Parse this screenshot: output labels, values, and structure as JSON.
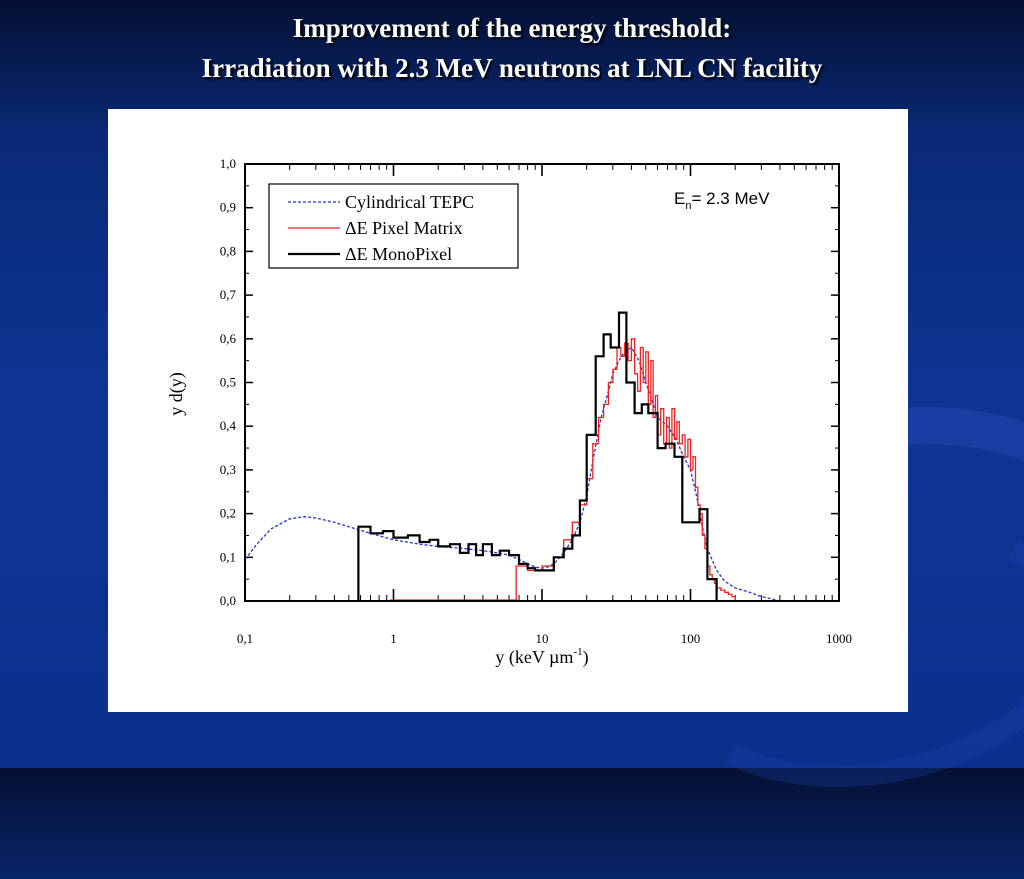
{
  "slide": {
    "title_line1": "Improvement of the energy threshold:",
    "title_line2": "Irradiation with 2.3 MeV neutrons at LNL CN facility"
  },
  "chart_data": {
    "type": "line",
    "xscale": "log",
    "xlim": [
      0.1,
      1000
    ],
    "ylim": [
      0,
      1
    ],
    "x_ticks": [
      "0,1",
      "1",
      "10",
      "100",
      "1000"
    ],
    "y_ticks": [
      "0,0",
      "0,1",
      "0,2",
      "0,3",
      "0,4",
      "0,5",
      "0,6",
      "0,7",
      "0,8",
      "0,9",
      "1,0"
    ],
    "ylabel": "y d(y)",
    "xlabel_main": "y (keV µm",
    "xlabel_sup": "-1",
    "xlabel_close": ")",
    "annotation": {
      "text": "E",
      "sub": "n",
      "rest": "= 2.3 MeV"
    },
    "legend_position": "top-left",
    "series": [
      {
        "name": "Cylindrical TEPC",
        "style": "dotted",
        "color": "#2233cc",
        "x": [
          0.1,
          0.12,
          0.15,
          0.2,
          0.25,
          0.3,
          0.4,
          0.5,
          0.7,
          1,
          1.5,
          2,
          3,
          4,
          5,
          6,
          7,
          8,
          9,
          10,
          11,
          12,
          14,
          16,
          18,
          20,
          22,
          25,
          28,
          30,
          33,
          36,
          40,
          45,
          50,
          55,
          60,
          70,
          80,
          90,
          100,
          110,
          120,
          130,
          150,
          170,
          200,
          250,
          300,
          350,
          400
        ],
        "y": [
          0.095,
          0.13,
          0.165,
          0.188,
          0.193,
          0.19,
          0.18,
          0.17,
          0.155,
          0.14,
          0.13,
          0.125,
          0.12,
          0.115,
          0.11,
          0.105,
          0.095,
          0.085,
          0.078,
          0.075,
          0.078,
          0.085,
          0.11,
          0.14,
          0.18,
          0.24,
          0.32,
          0.42,
          0.48,
          0.52,
          0.55,
          0.57,
          0.58,
          0.55,
          0.5,
          0.46,
          0.42,
          0.4,
          0.37,
          0.33,
          0.3,
          0.24,
          0.17,
          0.12,
          0.07,
          0.045,
          0.03,
          0.02,
          0.01,
          0.005,
          0.0
        ]
      },
      {
        "name": "ΔE Pixel Matrix",
        "style": "step",
        "color": "#ee2222",
        "edges": [
          6.7,
          8,
          10,
          12,
          14,
          16,
          18,
          20,
          22,
          24,
          26,
          28,
          30,
          32,
          34,
          36,
          38,
          40,
          42,
          44,
          46,
          48,
          50,
          52,
          54,
          56,
          58,
          60,
          63,
          66,
          69,
          72,
          75,
          78,
          81,
          84,
          88,
          92,
          96,
          100,
          104,
          108,
          112,
          116,
          120,
          125,
          130,
          135,
          140,
          145,
          150,
          160,
          170,
          180,
          190,
          200,
          210
        ],
        "values": [
          0.08,
          0.07,
          0.08,
          0.1,
          0.14,
          0.18,
          0.22,
          0.28,
          0.36,
          0.42,
          0.45,
          0.5,
          0.53,
          0.58,
          0.56,
          0.59,
          0.55,
          0.6,
          0.52,
          0.48,
          0.58,
          0.5,
          0.57,
          0.45,
          0.55,
          0.42,
          0.47,
          0.38,
          0.44,
          0.36,
          0.42,
          0.35,
          0.44,
          0.37,
          0.41,
          0.36,
          0.38,
          0.33,
          0.37,
          0.3,
          0.33,
          0.26,
          0.22,
          0.2,
          0.15,
          0.12,
          0.08,
          0.06,
          0.05,
          0.04,
          0.03,
          0.025,
          0.02,
          0.015,
          0.01,
          0.0
        ]
      },
      {
        "name": "ΔE MonoPixel",
        "style": "step",
        "color": "#000000",
        "edges": [
          0.58,
          0.7,
          0.85,
          1.0,
          1.25,
          1.5,
          1.75,
          2.0,
          2.4,
          2.8,
          3.2,
          3.6,
          4.0,
          4.6,
          5.2,
          6.0,
          7.0,
          8.0,
          9.0,
          10,
          12,
          14,
          16,
          18,
          20,
          23,
          26,
          29,
          33,
          37,
          42,
          47,
          52,
          60,
          68,
          78,
          88,
          100,
          115,
          130,
          150
        ],
        "values": [
          0.17,
          0.155,
          0.16,
          0.145,
          0.15,
          0.135,
          0.14,
          0.125,
          0.13,
          0.11,
          0.13,
          0.105,
          0.13,
          0.105,
          0.115,
          0.105,
          0.085,
          0.075,
          0.07,
          0.07,
          0.1,
          0.12,
          0.15,
          0.23,
          0.38,
          0.56,
          0.61,
          0.58,
          0.66,
          0.5,
          0.43,
          0.45,
          0.43,
          0.35,
          0.36,
          0.33,
          0.18,
          0.18,
          0.21,
          0.05
        ],
        "start_at": 0.58,
        "start_at_y": 0.0
      }
    ]
  }
}
